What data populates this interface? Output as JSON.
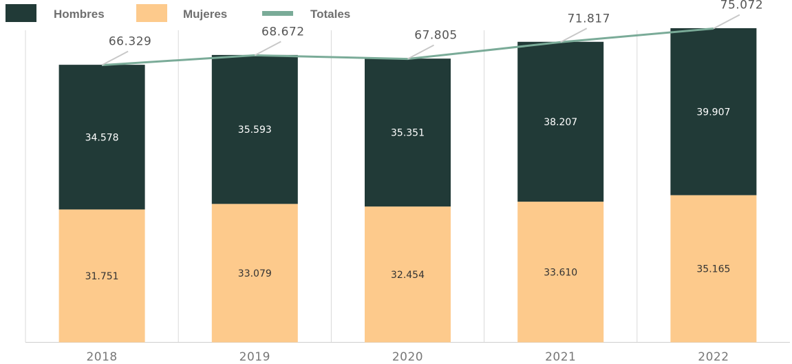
{
  "chart_data": {
    "type": "bar",
    "stacked": true,
    "title": "",
    "xlabel": "",
    "ylabel": "",
    "categories": [
      "2018",
      "2019",
      "2020",
      "2021",
      "2022"
    ],
    "series": [
      {
        "name": "Mujeres",
        "values": [
          31751,
          33079,
          32454,
          33610,
          35165
        ],
        "labels": [
          "31.751",
          "33.079",
          "32.454",
          "33.610",
          "35.165"
        ],
        "color": "#fdca8c"
      },
      {
        "name": "Hombres",
        "values": [
          34578,
          35593,
          35351,
          38207,
          39907
        ],
        "labels": [
          "34.578",
          "35.593",
          "35.351",
          "38.207",
          "39.907"
        ],
        "color": "#213a37"
      }
    ],
    "totals": {
      "name": "Totales",
      "values": [
        66329,
        68672,
        67805,
        71817,
        75072
      ],
      "labels": [
        "66.329",
        "68.672",
        "67.805",
        "71.817",
        "75.072"
      ],
      "color": "#7aab98",
      "type": "line"
    },
    "legend": {
      "placement": "top-left",
      "items": [
        {
          "label": "Hombres",
          "color": "#213a37",
          "shape": "box"
        },
        {
          "label": "Mujeres",
          "color": "#fdca8c",
          "shape": "box"
        },
        {
          "label": "Totales",
          "color": "#7aab98",
          "shape": "line"
        }
      ]
    },
    "ylim": [
      0,
      80000
    ],
    "grid": {
      "vertical": true,
      "horizontal": false
    }
  }
}
